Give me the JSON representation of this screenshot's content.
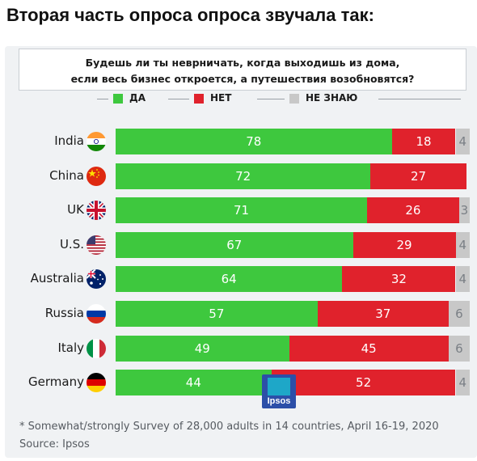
{
  "heading": "Вторая часть опроса опроса звучала так:",
  "chart_data": {
    "type": "bar",
    "orientation": "horizontal",
    "stacked": true,
    "title_lines": [
      "Будешь ли ты неврничать, когда выходишь из дома,",
      "если весь бизнес откроется, а путешествия возобновятся?"
    ],
    "legend": [
      {
        "key": "yes",
        "label": "ДА",
        "color": "#3ec83e"
      },
      {
        "key": "no",
        "label": "НЕТ",
        "color": "#e0222c"
      },
      {
        "key": "unknown",
        "label": "НЕ ЗНАЮ",
        "color": "#c8c8c8"
      }
    ],
    "legend_position": "top",
    "categories": [
      "India",
      "China",
      "UK",
      "U.S.",
      "Australia",
      "Russia",
      "Italy",
      "Germany"
    ],
    "flags": [
      "flag-india-icon",
      "flag-china-icon",
      "flag-uk-icon",
      "flag-us-icon",
      "flag-australia-icon",
      "flag-russia-icon",
      "flag-italy-icon",
      "flag-germany-icon"
    ],
    "series": [
      {
        "key": "yes",
        "name": "ДА",
        "values": [
          78,
          72,
          71,
          67,
          64,
          57,
          49,
          44
        ]
      },
      {
        "key": "no",
        "name": "НЕТ",
        "values": [
          18,
          27,
          26,
          29,
          32,
          37,
          45,
          52
        ]
      },
      {
        "key": "unknown",
        "name": "НЕ ЗНАЮ",
        "values": [
          4,
          null,
          3,
          4,
          4,
          6,
          6,
          4
        ]
      }
    ],
    "xlim": [
      0,
      100
    ],
    "footnote": "* Somewhat/strongly Survey of 28,000 adults in 14 countries, April 16-19, 2020",
    "source": "Source: Ipsos",
    "logo_text": "Ipsos"
  }
}
